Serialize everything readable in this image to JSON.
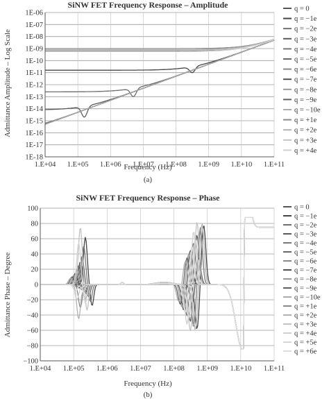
{
  "chart_data": [
    {
      "type": "line",
      "title": "SiNW FET Frequency Response – Amplitude",
      "xlabel": "Frequency (Hz)",
      "ylabel": "Admittance Amplitude – Log Scale",
      "caption": "(a)",
      "x_scale": "log",
      "y_scale": "log",
      "xlim": [
        10000,
        100000000000
      ],
      "ylim": [
        1e-18,
        1e-06
      ],
      "x_ticks": [
        "1.E+04",
        "1.E+05",
        "1.E+06",
        "1.E+07",
        "1.E+08",
        "1.E+09",
        "1.E+10",
        "1.E+11"
      ],
      "y_ticks": [
        "1E-18",
        "1E-17",
        "1E-16",
        "1E-15",
        "1E-14",
        "1E-13",
        "1E-12",
        "1E-11",
        "1E-10",
        "1E-09",
        "1E-08",
        "1E-07",
        "1E-06"
      ],
      "grid": "horizontal",
      "legend_position": "right",
      "series": [
        {
          "name": "q = 0",
          "color": "#555555",
          "floor": -9.2,
          "dip": 0
        },
        {
          "name": "q = −1e",
          "color": "#444444",
          "floor": -10.8,
          "dip": 0.5
        },
        {
          "name": "q = −2e",
          "color": "#6e6e6e",
          "floor": -12.6,
          "dip": 0.7
        },
        {
          "name": "q = −3e",
          "color": "#5a5a5a",
          "floor": -14.1,
          "dip": 0.9
        },
        {
          "name": "q = −4e",
          "color": "#777777",
          "floor": -15.9,
          "dip": 0.8
        },
        {
          "name": "q = −5e",
          "color": "#666666",
          "floor": -16.5,
          "dip": 0.7
        },
        {
          "name": "q = −6e",
          "color": "#888888",
          "floor": -16.8,
          "dip": 0.6
        },
        {
          "name": "q = −7e",
          "color": "#505050",
          "floor": -17.3,
          "dip": 0.6
        },
        {
          "name": "q = −8e",
          "color": "#999999",
          "floor": -17.5,
          "dip": 0.5
        },
        {
          "name": "q = −9e",
          "color": "#606060",
          "floor": -17.6,
          "dip": 0.4
        },
        {
          "name": "q = −10e",
          "color": "#aaaaaa",
          "floor": -17.7,
          "dip": 0.4
        },
        {
          "name": "q = +1e",
          "color": "#8a8a8a",
          "floor": -9.0,
          "dip": 0
        },
        {
          "name": "q = +2e",
          "color": "#b0b0b0",
          "floor": -9.1,
          "dip": 0
        },
        {
          "name": "q = +3e",
          "color": "#c2c2c2",
          "floor": -9.15,
          "dip": 0
        },
        {
          "name": "q = +4e",
          "color": "#cfcfcf",
          "floor": -9.25,
          "dip": 0
        }
      ]
    },
    {
      "type": "line",
      "title": "SiNW FET Frequency Response – Phase",
      "xlabel": "Frequency (Hz)",
      "ylabel": "Admittance Phase – Degree",
      "caption": "(b)",
      "x_scale": "log",
      "xlim": [
        10000,
        100000000000
      ],
      "ylim": [
        -100,
        100
      ],
      "x_ticks": [
        "1.E+04",
        "1.E+05",
        "1.E+06",
        "1.E+07",
        "1.E+08",
        "1.E+09",
        "1.E+10",
        "1.E+11"
      ],
      "y_ticks": [
        "−100",
        "−80",
        "−60",
        "−40",
        "−20",
        "0",
        "20",
        "40",
        "60",
        "80",
        "100"
      ],
      "grid": "horizontal",
      "legend_position": "right",
      "series": [
        {
          "name": "q = 0",
          "color": "#555555",
          "a1": 0,
          "p1": 5.3,
          "a2": 35,
          "p2": 8.65
        },
        {
          "name": "q = −1e",
          "color": "#444444",
          "a1": 62,
          "p1": 5.35,
          "a2": 78,
          "p2": 8.8
        },
        {
          "name": "q = −2e",
          "color": "#6e6e6e",
          "a1": 37,
          "p1": 5.25,
          "a2": 70,
          "p2": 8.7
        },
        {
          "name": "q = −3e",
          "color": "#5a5a5a",
          "a1": 30,
          "p1": 5.2,
          "a2": 65,
          "p2": 8.6
        },
        {
          "name": "q = −4e",
          "color": "#777777",
          "a1": 50,
          "p1": 5.3,
          "a2": 60,
          "p2": 8.55
        },
        {
          "name": "q = −5e",
          "color": "#666666",
          "a1": 25,
          "p1": 5.15,
          "a2": 55,
          "p2": 8.5
        },
        {
          "name": "q = −6e",
          "color": "#888888",
          "a1": 20,
          "p1": 5.1,
          "a2": 50,
          "p2": 8.45
        },
        {
          "name": "q = −7e",
          "color": "#505050",
          "a1": 15,
          "p1": 5.05,
          "a2": 45,
          "p2": 8.4
        },
        {
          "name": "q = −8e",
          "color": "#999999",
          "a1": 12,
          "p1": 5.0,
          "a2": 40,
          "p2": 8.35
        },
        {
          "name": "q = −9e",
          "color": "#606060",
          "a1": 10,
          "p1": 4.95,
          "a2": 35,
          "p2": 8.3
        },
        {
          "name": "q = −10e",
          "color": "#aaaaaa",
          "a1": 8,
          "p1": 4.9,
          "a2": 30,
          "p2": 8.25
        },
        {
          "name": "q = +1e",
          "color": "#8a8a8a",
          "a1": -30,
          "p1": 5.2,
          "a2": 75,
          "p2": 8.7
        },
        {
          "name": "q = +2e",
          "color": "#b0b0b0",
          "a1": -45,
          "p1": 5.15,
          "a2": 80,
          "p2": 8.75
        },
        {
          "name": "q = +3e",
          "color": "#c2c2c2",
          "a1": 75,
          "p1": 5.2,
          "a2": 82,
          "p2": 8.6
        },
        {
          "name": "q = +4e",
          "color": "#cfcfcf",
          "a1": -20,
          "p1": 5.1,
          "a2": 70,
          "p2": 8.5
        },
        {
          "name": "q = +5e",
          "color": "#d6d6d6",
          "a1": 55,
          "p1": 5.15,
          "a2": 60,
          "p2": 8.55
        },
        {
          "name": "q = +6e",
          "color": "#dddddd",
          "a1": -10,
          "p1": 5.05,
          "a2": 50,
          "p2": 8.45
        }
      ]
    }
  ]
}
